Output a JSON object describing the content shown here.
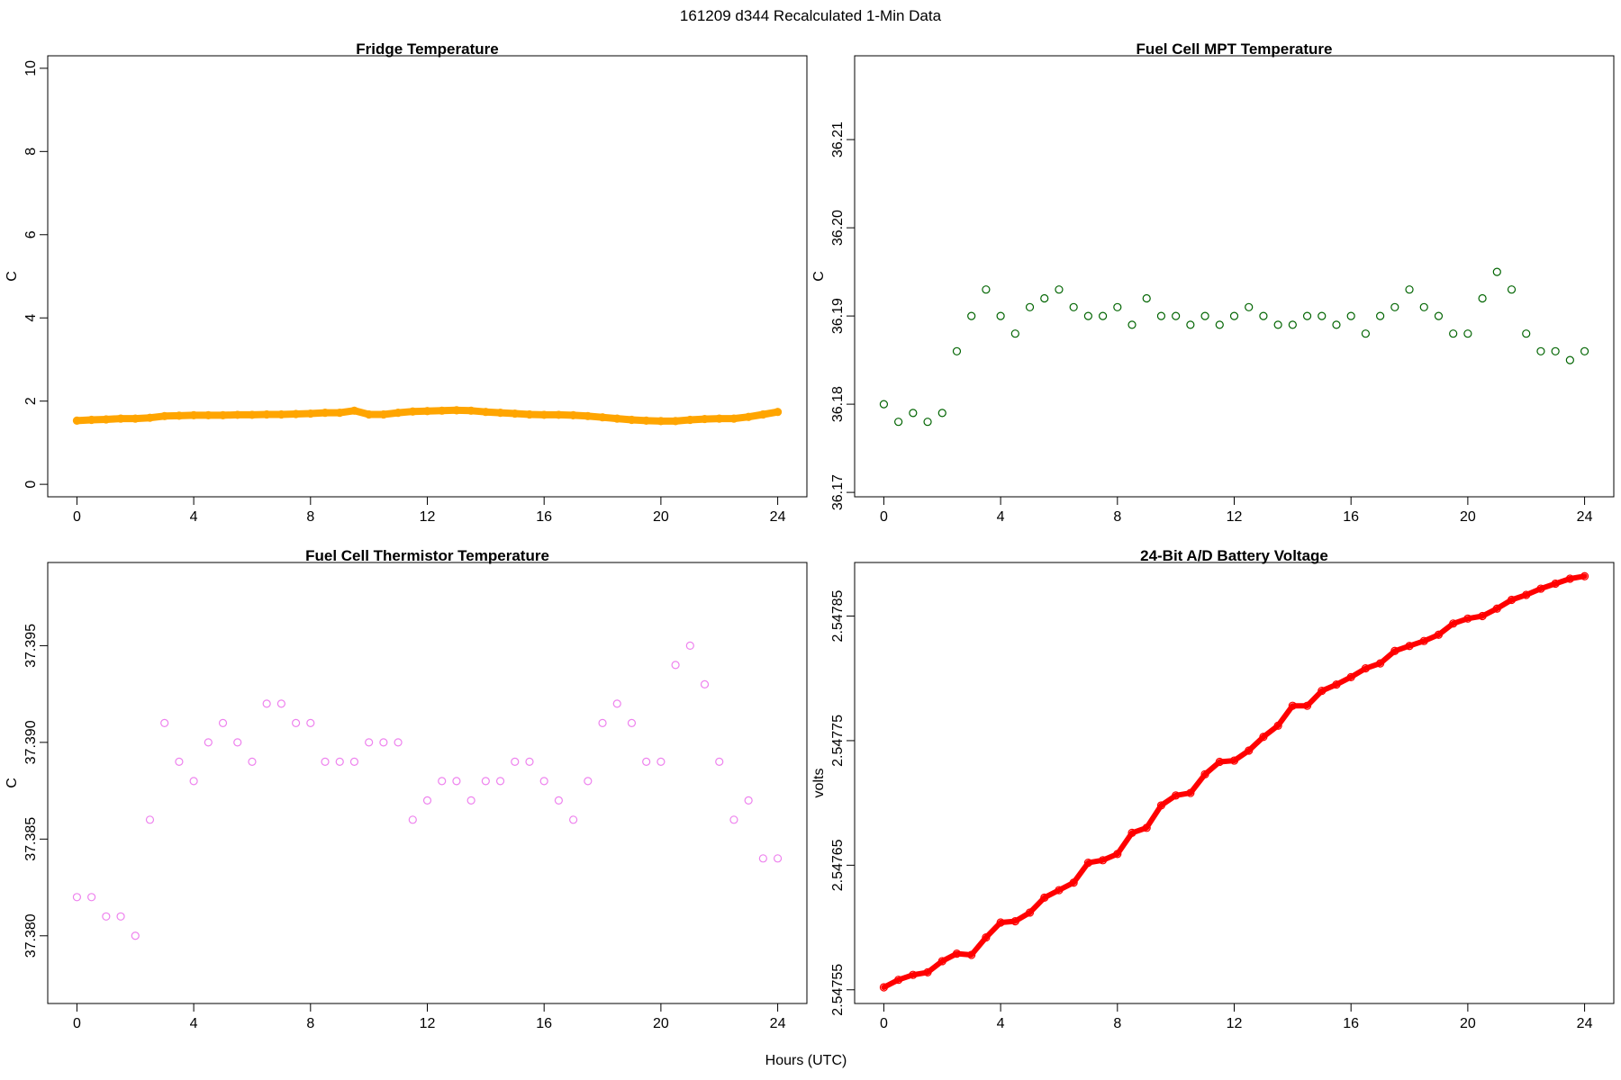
{
  "figure_title": "161209   d344   Recalculated 1-Min Data",
  "shared_xlabel": "Hours (UTC)",
  "chart_data": [
    {
      "type": "line",
      "title": "Fridge Temperature",
      "xlabel": "",
      "ylabel": "C",
      "xlim": [
        -1,
        25
      ],
      "ylim": [
        -0.3,
        10.3
      ],
      "xticks": [
        0,
        4,
        8,
        12,
        16,
        20,
        24
      ],
      "yticks": [
        0,
        2,
        4,
        6,
        8,
        10
      ],
      "ytick_labels": [
        "0",
        "2",
        "4",
        "6",
        "8",
        "10"
      ],
      "color": "#FFA500",
      "marker": "filled-circle",
      "x": [
        0,
        0.5,
        1,
        1.5,
        2,
        2.5,
        3,
        3.5,
        4,
        4.5,
        5,
        5.5,
        6,
        6.5,
        7,
        7.5,
        8,
        8.5,
        9,
        9.5,
        10,
        10.5,
        11,
        11.5,
        12,
        12.5,
        13,
        13.5,
        14,
        14.5,
        15,
        15.5,
        16,
        16.5,
        17,
        17.5,
        18,
        18.5,
        19,
        19.5,
        20,
        20.5,
        21,
        21.5,
        22,
        22.5,
        23,
        23.5,
        24
      ],
      "y": [
        1.53,
        1.55,
        1.56,
        1.58,
        1.58,
        1.6,
        1.64,
        1.65,
        1.66,
        1.66,
        1.66,
        1.67,
        1.67,
        1.68,
        1.68,
        1.69,
        1.7,
        1.72,
        1.72,
        1.77,
        1.68,
        1.68,
        1.72,
        1.75,
        1.76,
        1.77,
        1.78,
        1.77,
        1.74,
        1.72,
        1.7,
        1.68,
        1.67,
        1.67,
        1.66,
        1.64,
        1.61,
        1.58,
        1.55,
        1.53,
        1.52,
        1.52,
        1.55,
        1.57,
        1.58,
        1.58,
        1.62,
        1.68,
        1.74
      ]
    },
    {
      "type": "scatter",
      "title": "Fuel Cell MPT Temperature",
      "xlabel": "",
      "ylabel": "C",
      "xlim": [
        -1,
        25
      ],
      "ylim": [
        36.1695,
        36.2195
      ],
      "xticks": [
        0,
        4,
        8,
        12,
        16,
        20,
        24
      ],
      "yticks": [
        36.17,
        36.18,
        36.19,
        36.2,
        36.21
      ],
      "ytick_labels": [
        "36.17",
        "36.18",
        "36.19",
        "36.20",
        "36.21"
      ],
      "color": "#006400",
      "marker": "open-circle",
      "x": [
        0,
        0.5,
        1,
        1.5,
        2,
        2.5,
        3,
        3.5,
        4,
        4.5,
        5,
        5.5,
        6,
        6.5,
        7,
        7.5,
        8,
        8.5,
        9,
        9.5,
        10,
        10.5,
        11,
        11.5,
        12,
        12.5,
        13,
        13.5,
        14,
        14.5,
        15,
        15.5,
        16,
        16.5,
        17,
        17.5,
        18,
        18.5,
        19,
        19.5,
        20,
        20.5,
        21,
        21.5,
        22,
        22.5,
        23,
        23.5,
        24
      ],
      "y": [
        36.18,
        36.178,
        36.179,
        36.178,
        36.179,
        36.186,
        36.19,
        36.193,
        36.19,
        36.188,
        36.191,
        36.192,
        36.193,
        36.191,
        36.19,
        36.19,
        36.191,
        36.189,
        36.192,
        36.19,
        36.19,
        36.189,
        36.19,
        36.189,
        36.19,
        36.191,
        36.19,
        36.189,
        36.189,
        36.19,
        36.19,
        36.189,
        36.19,
        36.188,
        36.19,
        36.191,
        36.193,
        36.191,
        36.19,
        36.188,
        36.188,
        36.192,
        36.195,
        36.193,
        36.188,
        36.186,
        36.186,
        36.185,
        36.186
      ]
    },
    {
      "type": "scatter",
      "title": "Fuel Cell Thermistor Temperature",
      "xlabel": "",
      "ylabel": "C",
      "xlim": [
        -1,
        25
      ],
      "ylim": [
        37.3765,
        37.3993
      ],
      "xticks": [
        0,
        4,
        8,
        12,
        16,
        20,
        24
      ],
      "yticks": [
        37.38,
        37.385,
        37.39,
        37.395
      ],
      "ytick_labels": [
        "37.380",
        "37.385",
        "37.390",
        "37.395"
      ],
      "color": "#EE82EE",
      "marker": "open-circle",
      "x": [
        0,
        0.5,
        1,
        1.5,
        2,
        2.5,
        3,
        3.5,
        4,
        4.5,
        5,
        5.5,
        6,
        6.5,
        7,
        7.5,
        8,
        8.5,
        9,
        9.5,
        10,
        10.5,
        11,
        11.5,
        12,
        12.5,
        13,
        13.5,
        14,
        14.5,
        15,
        15.5,
        16,
        16.5,
        17,
        17.5,
        18,
        18.5,
        19,
        19.5,
        20,
        20.5,
        21,
        21.5,
        22,
        22.5,
        23,
        23.5,
        24
      ],
      "y": [
        37.382,
        37.382,
        37.381,
        37.381,
        37.38,
        37.386,
        37.391,
        37.389,
        37.388,
        37.39,
        37.391,
        37.39,
        37.389,
        37.392,
        37.392,
        37.391,
        37.391,
        37.389,
        37.389,
        37.389,
        37.39,
        37.39,
        37.39,
        37.386,
        37.387,
        37.388,
        37.388,
        37.387,
        37.388,
        37.388,
        37.389,
        37.389,
        37.388,
        37.387,
        37.386,
        37.388,
        37.391,
        37.392,
        37.391,
        37.389,
        37.389,
        37.394,
        37.395,
        37.393,
        37.389,
        37.386,
        37.387,
        37.384,
        37.384
      ]
    },
    {
      "type": "line",
      "title": "24-Bit A/D Battery Voltage",
      "xlabel": "",
      "ylabel": "volts",
      "xlim": [
        -1,
        25
      ],
      "ylim": [
        2.547539,
        2.547893
      ],
      "xticks": [
        0,
        4,
        8,
        12,
        16,
        20,
        24
      ],
      "yticks": [
        2.54755,
        2.54765,
        2.54775,
        2.54785
      ],
      "ytick_labels": [
        "2.54755",
        "2.54765",
        "2.54775",
        "2.54785"
      ],
      "color": "#FF0000",
      "marker": "open-circle",
      "x": [
        0,
        0.5,
        1,
        1.5,
        2,
        2.5,
        3,
        3.5,
        4,
        4.5,
        5,
        5.5,
        6,
        6.5,
        7,
        7.5,
        8,
        8.5,
        9,
        9.5,
        10,
        10.5,
        11,
        11.5,
        12,
        12.5,
        13,
        13.5,
        14,
        14.5,
        15,
        15.5,
        16,
        16.5,
        17,
        17.5,
        18,
        18.5,
        19,
        19.5,
        20,
        20.5,
        21,
        21.5,
        22,
        22.5,
        23,
        23.5,
        24
      ],
      "y": [
        2.547552,
        2.547558,
        2.547562,
        2.547564,
        2.547573,
        2.547579,
        2.547578,
        2.547592,
        2.547604,
        2.547605,
        2.547612,
        2.547624,
        2.54763,
        2.547636,
        2.547652,
        2.547654,
        2.547659,
        2.547676,
        2.54768,
        2.547698,
        2.547706,
        2.547708,
        2.547723,
        2.547733,
        2.547734,
        2.547742,
        2.547753,
        2.547762,
        2.547778,
        2.547778,
        2.54779,
        2.547795,
        2.547801,
        2.547808,
        2.547812,
        2.547822,
        2.547826,
        2.54783,
        2.547835,
        2.547844,
        2.547848,
        2.54785,
        2.547856,
        2.547863,
        2.547867,
        2.547872,
        2.547876,
        2.54788,
        2.547882
      ]
    }
  ]
}
